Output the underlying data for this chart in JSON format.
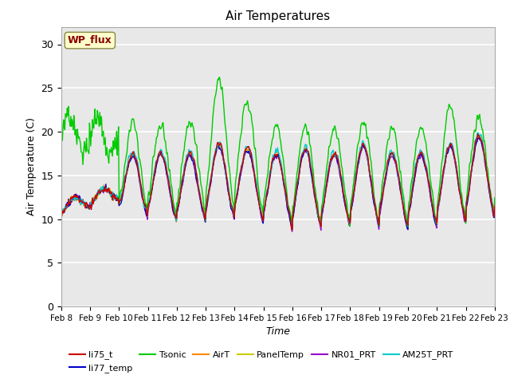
{
  "title": "Air Temperatures",
  "xlabel": "Time",
  "ylabel": "Air Temperature (C)",
  "ylim": [
    0,
    32
  ],
  "yticks": [
    0,
    5,
    10,
    15,
    20,
    25,
    30
  ],
  "n_days": 15,
  "x_tick_labels": [
    "Feb 8",
    "Feb 9",
    "Feb 10",
    "Feb 11",
    "Feb 12",
    "Feb 13",
    "Feb 14",
    "Feb 15",
    "Feb 16",
    "Feb 17",
    "Feb 18",
    "Feb 19",
    "Feb 20",
    "Feb 21",
    "Feb 22",
    "Feb 23"
  ],
  "legend_entries": [
    {
      "label": "li75_t",
      "color": "#cc0000"
    },
    {
      "label": "li77_temp",
      "color": "#0000cc"
    },
    {
      "label": "Tsonic",
      "color": "#00cc00"
    },
    {
      "label": "AirT",
      "color": "#ff8800"
    },
    {
      "label": "PanelTemp",
      "color": "#cccc00"
    },
    {
      "label": "NR01_PRT",
      "color": "#9900cc"
    },
    {
      "label": "AM25T_PRT",
      "color": "#00cccc"
    }
  ],
  "wp_flux_label": "WP_flux",
  "wp_flux_color": "#880000",
  "wp_flux_bg": "#ffffcc",
  "bg_color": "#e8e8e8",
  "grid_color": "#ffffff",
  "fig_bg": "#ffffff"
}
